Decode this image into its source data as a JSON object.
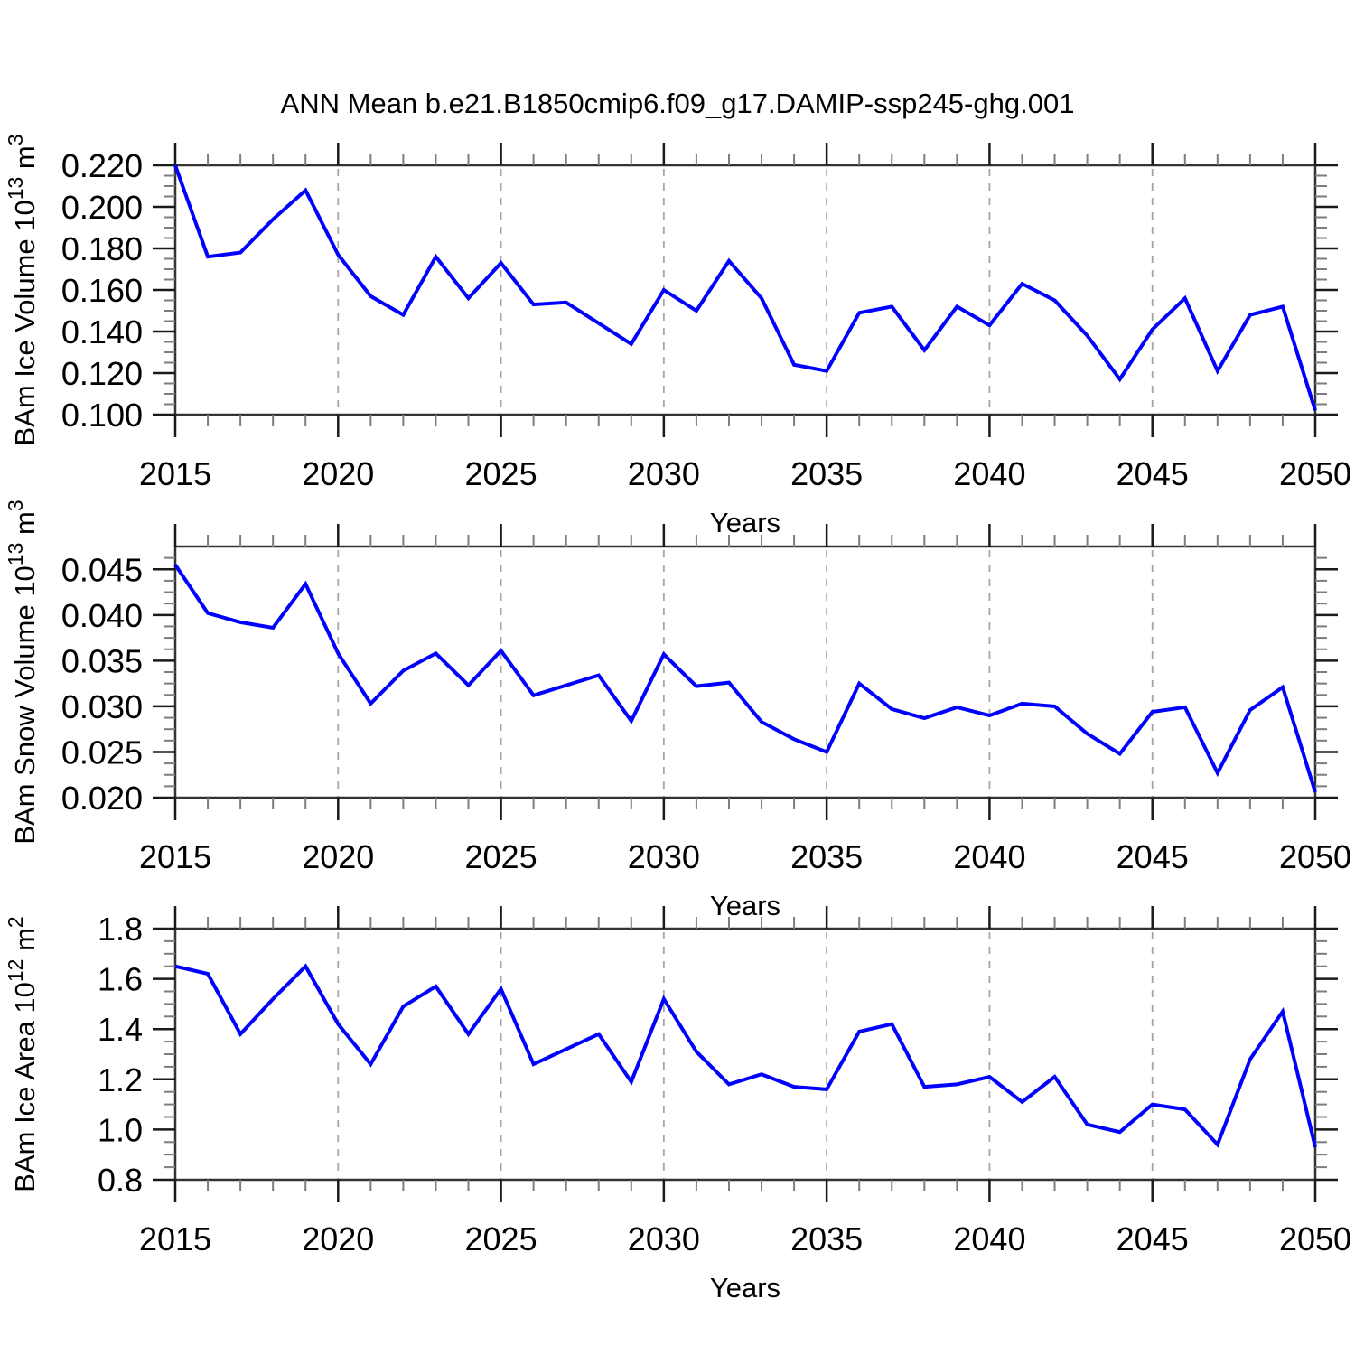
{
  "title": "ANN Mean b.e21.B1850cmip6.f09_g17.DAMIP-ssp245-ghg.001",
  "colors": {
    "line": "#0000ff",
    "frame": "#333333",
    "major_tick": "#1a1a1a",
    "minor_tick": "#7d7d7d",
    "grid": "#a6a6a6",
    "text": "#000000",
    "background": "#ffffff"
  },
  "years": [
    2015,
    2016,
    2017,
    2018,
    2019,
    2020,
    2021,
    2022,
    2023,
    2024,
    2025,
    2026,
    2027,
    2028,
    2029,
    2030,
    2031,
    2032,
    2033,
    2034,
    2035,
    2036,
    2037,
    2038,
    2039,
    2040,
    2041,
    2042,
    2043,
    2044,
    2045,
    2046,
    2047,
    2048,
    2049,
    2050
  ],
  "chart_data": [
    {
      "type": "line",
      "name": "bam-ice-volume",
      "ylabel_parts": [
        {
          "t": "BAm Ice Volume 10",
          "sup": false
        },
        {
          "t": "13",
          "sup": true
        },
        {
          "t": " m",
          "sup": false
        },
        {
          "t": "3",
          "sup": true
        }
      ],
      "xlabel": "Years",
      "xlim": [
        2015,
        2050
      ],
      "ylim": [
        0.1,
        0.22
      ],
      "ytick_values": [
        0.1,
        0.12,
        0.14,
        0.16,
        0.18,
        0.2,
        0.22
      ],
      "ytick_labels": [
        "0.100",
        "0.120",
        "0.140",
        "0.160",
        "0.180",
        "0.200",
        "0.220"
      ],
      "ytick_minor": 0.005,
      "xtick_values": [
        2015,
        2020,
        2025,
        2030,
        2035,
        2040,
        2045,
        2050
      ],
      "xtick_labels": [
        "2015",
        "2020",
        "2025",
        "2030",
        "2035",
        "2040",
        "2045",
        "2050"
      ],
      "grid_years": [
        2020,
        2025,
        2030,
        2035,
        2040,
        2045
      ],
      "values": [
        0.22,
        0.176,
        0.178,
        0.194,
        0.208,
        0.177,
        0.157,
        0.148,
        0.176,
        0.156,
        0.173,
        0.153,
        0.154,
        0.144,
        0.134,
        0.16,
        0.15,
        0.174,
        0.156,
        0.124,
        0.121,
        0.149,
        0.152,
        0.131,
        0.152,
        0.143,
        0.163,
        0.155,
        0.138,
        0.117,
        0.141,
        0.156,
        0.121,
        0.148,
        0.152,
        0.102
      ]
    },
    {
      "type": "line",
      "name": "bam-snow-volume",
      "ylabel_parts": [
        {
          "t": "BAm Snow Volume 10",
          "sup": false
        },
        {
          "t": "13",
          "sup": true
        },
        {
          "t": " m",
          "sup": false
        },
        {
          "t": "3",
          "sup": true
        }
      ],
      "xlabel": "Years",
      "xlim": [
        2015,
        2050
      ],
      "ylim": [
        0.02,
        0.0475
      ],
      "ytick_values": [
        0.02,
        0.025,
        0.03,
        0.035,
        0.04,
        0.045
      ],
      "ytick_labels": [
        "0.020",
        "0.025",
        "0.030",
        "0.035",
        "0.040",
        "0.045"
      ],
      "ytick_minor": 0.00125,
      "xtick_values": [
        2015,
        2020,
        2025,
        2030,
        2035,
        2040,
        2045,
        2050
      ],
      "xtick_labels": [
        "2015",
        "2020",
        "2025",
        "2030",
        "2035",
        "2040",
        "2045",
        "2050"
      ],
      "grid_years": [
        2020,
        2025,
        2030,
        2035,
        2040,
        2045
      ],
      "values": [
        0.0455,
        0.0402,
        0.0392,
        0.0386,
        0.0434,
        0.0358,
        0.0303,
        0.0339,
        0.0358,
        0.0323,
        0.0361,
        0.0312,
        0.0323,
        0.0334,
        0.0284,
        0.0357,
        0.0322,
        0.0326,
        0.0283,
        0.0264,
        0.025,
        0.0325,
        0.0297,
        0.0287,
        0.0299,
        0.029,
        0.0303,
        0.03,
        0.027,
        0.0248,
        0.0294,
        0.0299,
        0.0227,
        0.0296,
        0.0321,
        0.0206
      ]
    },
    {
      "type": "line",
      "name": "bam-ice-area",
      "ylabel_parts": [
        {
          "t": "BAm Ice Area 10",
          "sup": false
        },
        {
          "t": "12",
          "sup": true
        },
        {
          "t": " m",
          "sup": false
        },
        {
          "t": "2",
          "sup": true
        }
      ],
      "xlabel": "Years",
      "xlim": [
        2015,
        2050
      ],
      "ylim": [
        0.8,
        1.8
      ],
      "ytick_values": [
        0.8,
        1.0,
        1.2,
        1.4,
        1.6,
        1.8
      ],
      "ytick_labels": [
        "0.8",
        "1.0",
        "1.2",
        "1.4",
        "1.6",
        "1.8"
      ],
      "ytick_minor": 0.05,
      "xtick_values": [
        2015,
        2020,
        2025,
        2030,
        2035,
        2040,
        2045,
        2050
      ],
      "xtick_labels": [
        "2015",
        "2020",
        "2025",
        "2030",
        "2035",
        "2040",
        "2045",
        "2050"
      ],
      "grid_years": [
        2020,
        2025,
        2030,
        2035,
        2040,
        2045
      ],
      "values": [
        1.65,
        1.62,
        1.38,
        1.52,
        1.65,
        1.42,
        1.26,
        1.49,
        1.57,
        1.38,
        1.56,
        1.26,
        1.32,
        1.38,
        1.19,
        1.52,
        1.31,
        1.18,
        1.22,
        1.17,
        1.16,
        1.39,
        1.42,
        1.17,
        1.18,
        1.21,
        1.11,
        1.21,
        1.02,
        0.99,
        1.1,
        1.08,
        0.94,
        1.28,
        1.47,
        0.93
      ]
    }
  ]
}
